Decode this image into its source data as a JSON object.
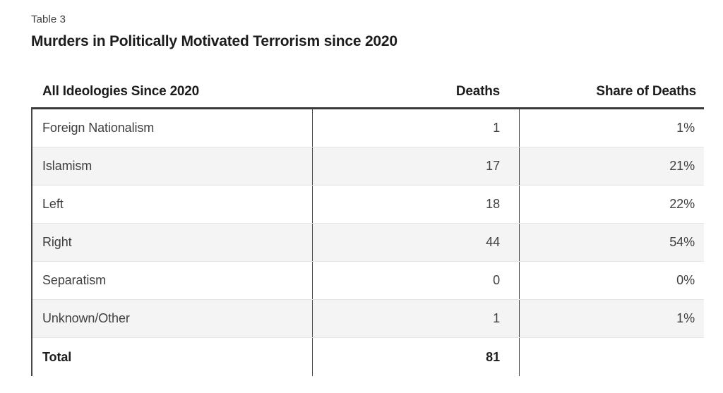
{
  "header": {
    "table_label": "Table 3",
    "title": "Murders in Politically Motivated Terrorism since 2020"
  },
  "table": {
    "columns": [
      "All Ideologies Since 2020",
      "Deaths",
      "Share of Deaths"
    ],
    "rows": [
      {
        "ideology": "Foreign Nationalism",
        "deaths": "1",
        "share": "1%",
        "emphasis": false
      },
      {
        "ideology": "Islamism",
        "deaths": "17",
        "share": "21%",
        "emphasis": false
      },
      {
        "ideology": "Left",
        "deaths": "18",
        "share": "22%",
        "emphasis": false
      },
      {
        "ideology": "Right",
        "deaths": "44",
        "share": "54%",
        "emphasis": false
      },
      {
        "ideology": "Separatism",
        "deaths": "0",
        "share": "0%",
        "emphasis": false
      },
      {
        "ideology": "Unknown/Other",
        "deaths": "1",
        "share": "1%",
        "emphasis": false
      },
      {
        "ideology": "Total",
        "deaths": "81",
        "share": "",
        "emphasis": true
      }
    ]
  },
  "colors": {
    "stripe_row": "#f4f4f4",
    "border_dark": "#3a3a3a",
    "row_divider": "#e4e4e4",
    "text_regular": "#3f3f3f",
    "text_bold": "#1c1c1c"
  }
}
